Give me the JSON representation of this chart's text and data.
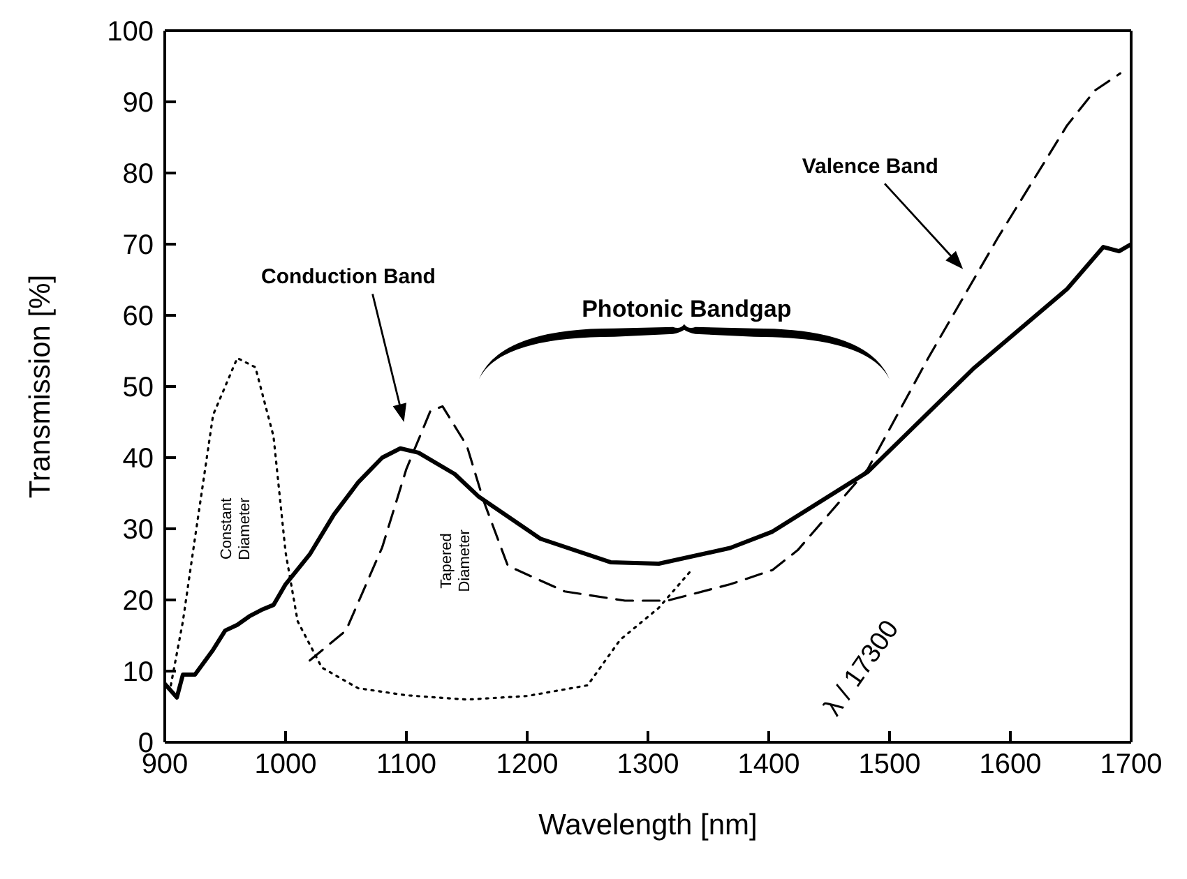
{
  "chart_data": {
    "type": "line",
    "xlabel": "Wavelength [nm]",
    "ylabel": "Transmission [%]",
    "xlim": [
      900,
      1700
    ],
    "xticks": [
      900,
      1000,
      1100,
      1200,
      1300,
      1400,
      1500,
      1600,
      1700
    ],
    "ylim": [
      0,
      100
    ],
    "yticks": [
      0,
      10,
      20,
      30,
      40,
      50,
      60,
      70,
      80,
      90,
      100
    ],
    "grid": false,
    "legend": false,
    "marker": "none",
    "series": [
      {
        "color": "#000000",
        "line_style": "solid",
        "x": [
          900,
          910,
          915,
          925,
          940,
          950,
          960,
          970,
          980,
          990,
          1000,
          1020,
          1040,
          1060,
          1080,
          1095,
          1110,
          1140,
          1160,
          1211,
          1269,
          1309,
          1368,
          1403,
          1482,
          1570,
          1647,
          1677,
          1690,
          1700
        ],
        "values": [
          8.2,
          6.3,
          9.5,
          9.5,
          13,
          15.7,
          16.5,
          17.7,
          18.6,
          19.3,
          22.2,
          26.4,
          32,
          36.5,
          40,
          41.3,
          40.7,
          37.7,
          34.5,
          28.6,
          25.3,
          25.1,
          27.3,
          29.6,
          38,
          52.6,
          63.7,
          69.6,
          69,
          70
        ]
      },
      {
        "color": "#000000",
        "line_style": "dotted",
        "x": [
          905,
          915,
          925,
          940,
          960,
          975,
          990,
          1000,
          1010,
          1030,
          1060,
          1100,
          1150,
          1200,
          1250,
          1277,
          1309,
          1336
        ],
        "values": [
          8,
          17,
          28.7,
          46,
          54,
          52.7,
          43,
          26.7,
          17,
          10.5,
          7.6,
          6.6,
          6,
          6.5,
          8,
          14.4,
          18.9,
          24.2
        ]
      },
      {
        "color": "#000000",
        "line_style": "dashed",
        "x": [
          1020,
          1050,
          1080,
          1100,
          1120,
          1130,
          1150,
          1164,
          1184,
          1231,
          1281,
          1316,
          1368,
          1403,
          1424,
          1482,
          1532,
          1590,
          1647,
          1670,
          1691
        ],
        "values": [
          11.5,
          15.7,
          27.4,
          38.4,
          46.6,
          47.2,
          41.7,
          33.9,
          24.8,
          21.2,
          19.9,
          19.9,
          22.2,
          24.2,
          27,
          38.4,
          54,
          71,
          86.7,
          91.6,
          94
        ]
      }
    ],
    "annotations": [
      "Conduction Band",
      "Valence Band",
      "Photonic Bandgap",
      "Constant Diameter",
      "Tapered Diameter",
      "λ / 17300"
    ]
  }
}
